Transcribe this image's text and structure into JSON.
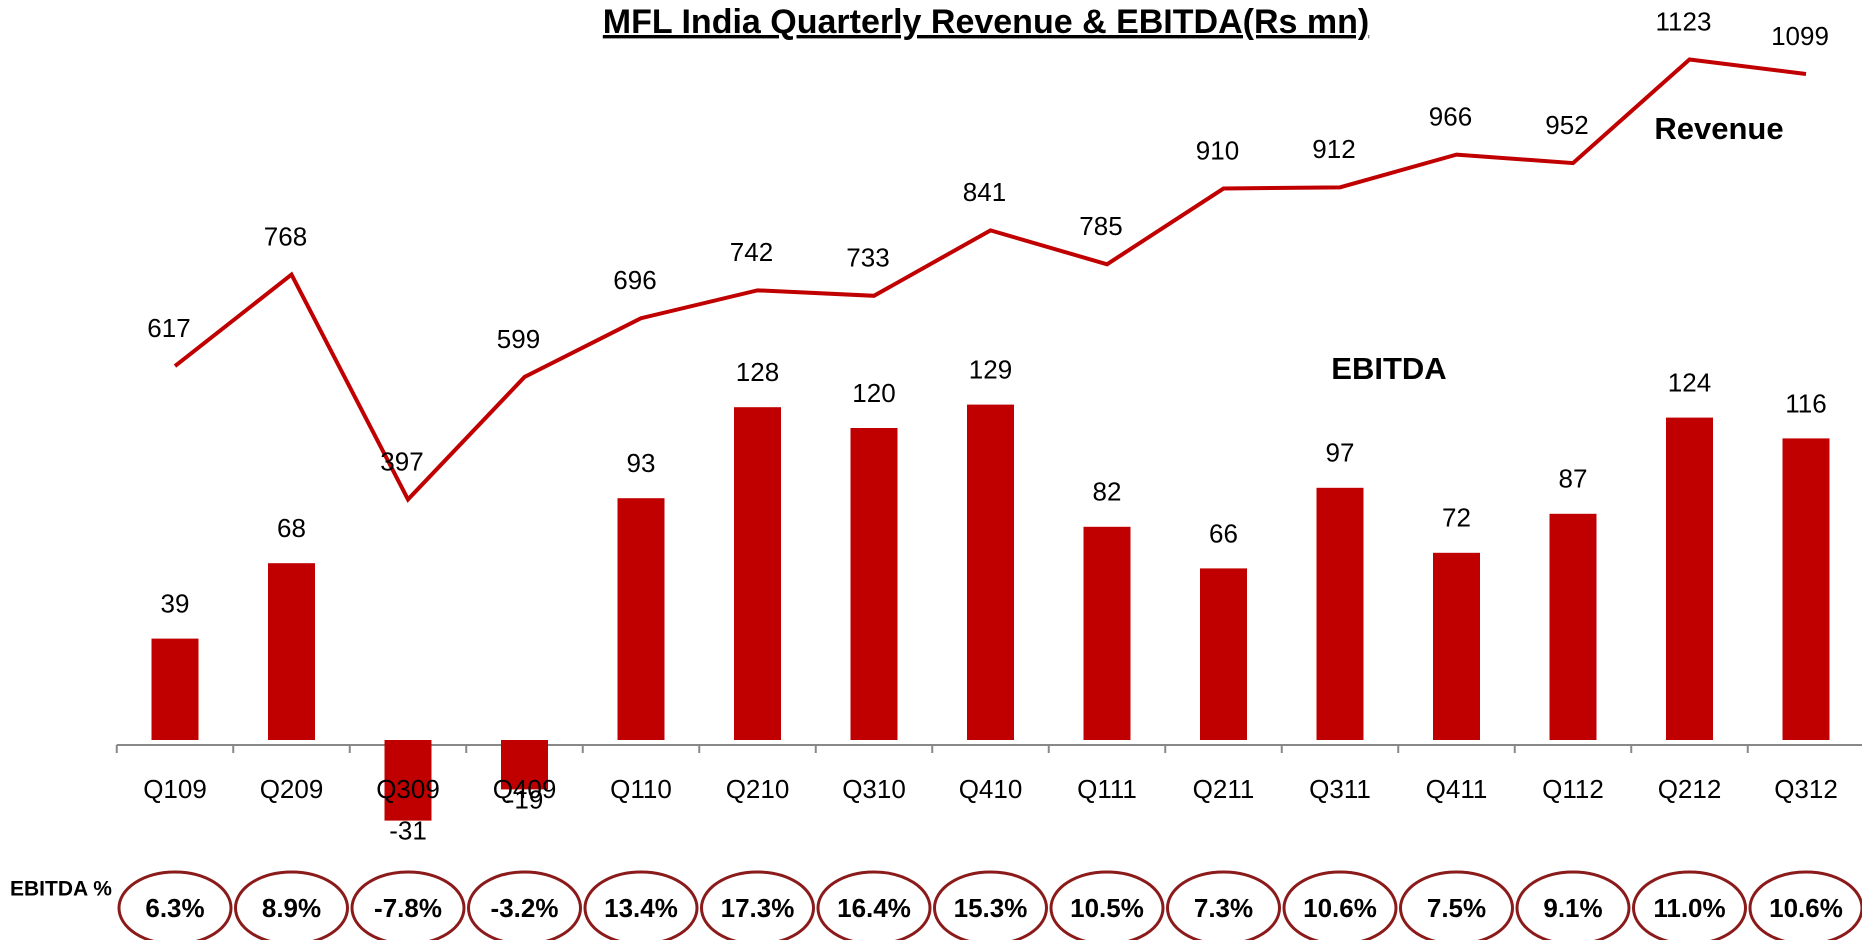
{
  "chart_data": {
    "type": "bar-line",
    "title": "MFL India Quarterly Revenue & EBITDA(Rs mn)",
    "categories": [
      "Q109",
      "Q209",
      "Q309",
      "Q409",
      "Q110",
      "Q210",
      "Q310",
      "Q410",
      "Q111",
      "Q211",
      "Q311",
      "Q411",
      "Q112",
      "Q212",
      "Q312"
    ],
    "series": [
      {
        "name": "Revenue",
        "type": "line",
        "color": "#c00000",
        "axis": "y2",
        "values": [
          617,
          768,
          397,
          599,
          696,
          742,
          733,
          841,
          785,
          910,
          912,
          966,
          952,
          1123,
          1099
        ]
      },
      {
        "name": "EBITDA",
        "type": "bar",
        "color": "#c00000",
        "values": [
          39,
          68,
          -31,
          -19,
          93,
          128,
          120,
          129,
          82,
          66,
          97,
          72,
          87,
          124,
          116
        ]
      }
    ],
    "ebitda_pct": {
      "label": "EBITDA %",
      "values": [
        6.3,
        8.9,
        -7.8,
        -3.2,
        13.4,
        17.3,
        16.4,
        15.3,
        10.5,
        7.3,
        10.6,
        7.5,
        9.1,
        11.0,
        10.6
      ],
      "value_labels": [
        "6.3%",
        "8.9%",
        "-7.8%",
        "-3.2%",
        "13.4%",
        "17.3%",
        "16.4%",
        "15.3%",
        "10.5%",
        "7.3%",
        "10.6%",
        "7.5%",
        "9.1%",
        "11.0%",
        "10.6%"
      ],
      "color": "#8b1a1a"
    }
  }
}
